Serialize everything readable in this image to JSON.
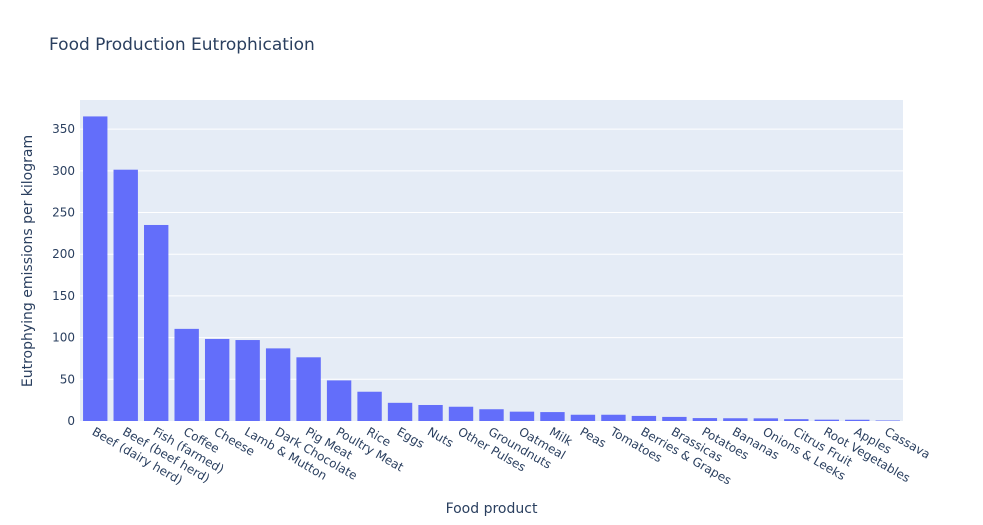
{
  "chart_data": {
    "type": "bar",
    "title": "Food Production Eutrophication",
    "xlabel": "Food product",
    "ylabel": "Eutrophying emissions per kilogram",
    "ylim": [
      0,
      385
    ],
    "yticks": [
      0,
      50,
      100,
      150,
      200,
      250,
      300,
      350
    ],
    "grid": true,
    "bar_color": "#636efa",
    "plot_bg": "#e5ecf6",
    "categories": [
      "Beef (dairy herd)",
      "Beef (beef herd)",
      "Fish (farmed)",
      "Coffee",
      "Cheese",
      "Lamb & Mutton",
      "Dark Chocolate",
      "Pig Meat",
      "Poultry Meat",
      "Rice",
      "Eggs",
      "Nuts",
      "Other Pulses",
      "Groundnuts",
      "Oatmeal",
      "Milk",
      "Peas",
      "Tomatoes",
      "Berries & Grapes",
      "Brassicas",
      "Potatoes",
      "Bananas",
      "Onions & Leeks",
      "Citrus Fruit",
      "Root Vegetables",
      "Apples",
      "Cassava"
    ],
    "values": [
      365.3,
      301.4,
      235.1,
      110.5,
      98.4,
      97.1,
      87.1,
      76.4,
      48.7,
      35.1,
      21.8,
      19.2,
      17.1,
      14.1,
      11.2,
      10.7,
      7.5,
      7.5,
      6.1,
      4.9,
      3.5,
      3.3,
      3.2,
      2.2,
      1.6,
      1.5,
      0.6
    ]
  }
}
